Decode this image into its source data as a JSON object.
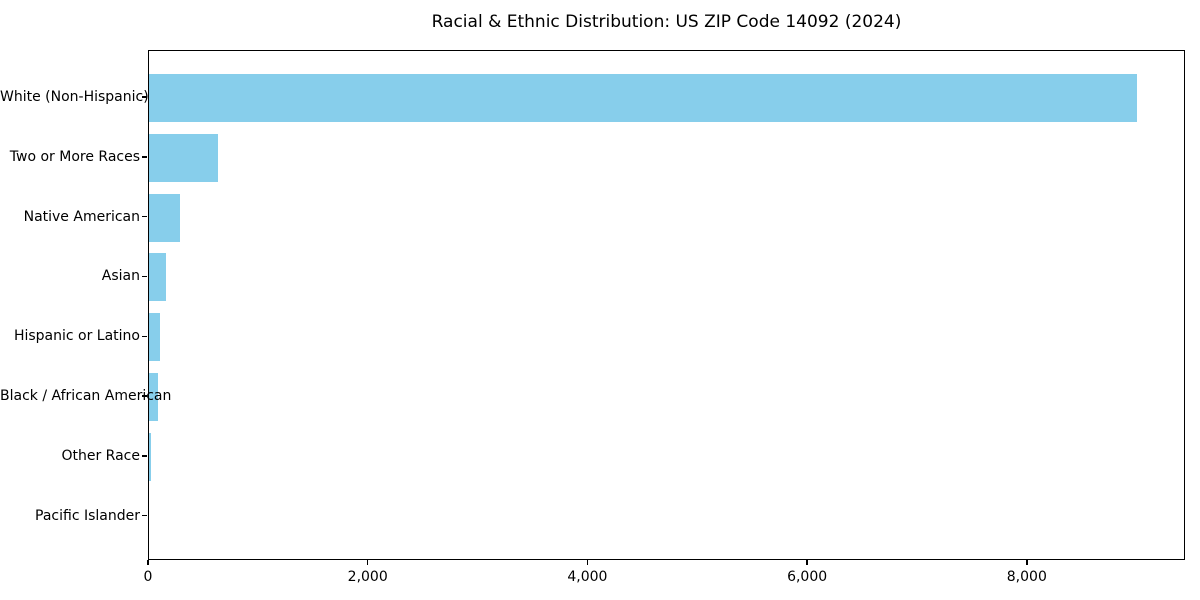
{
  "figure": {
    "background": "#ffffff"
  },
  "chart_data": {
    "type": "bar",
    "orientation": "horizontal",
    "title": "Racial & Ethnic Distribution: US ZIP Code 14092 (2024)",
    "categories": [
      "White (Non-Hispanic)",
      "Two or More Races",
      "Native American",
      "Asian",
      "Hispanic or Latino",
      "Black / African American",
      "Other Race",
      "Pacific Islander"
    ],
    "values": [
      8990,
      625,
      282,
      157,
      100,
      85,
      15,
      0
    ],
    "xlabel": "",
    "ylabel": "",
    "xlim": [
      0,
      9440
    ],
    "x_ticks": [
      0,
      2000,
      4000,
      6000,
      8000
    ],
    "x_tick_labels": [
      "0",
      "2,000",
      "4,000",
      "6,000",
      "8,000"
    ],
    "bar_color": "#87CEEB",
    "axis_color": "#000000",
    "text_color": "#000000",
    "grid": false,
    "legend": false
  }
}
